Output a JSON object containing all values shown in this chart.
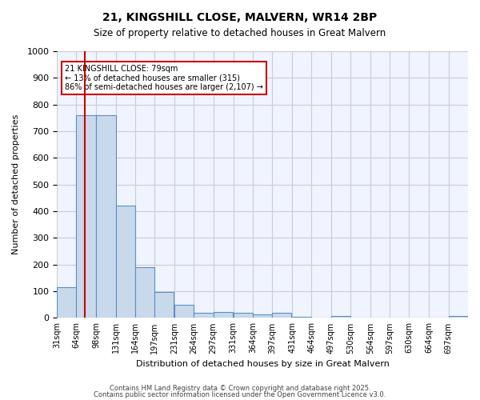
{
  "title1": "21, KINGSHILL CLOSE, MALVERN, WR14 2BP",
  "title2": "Size of property relative to detached houses in Great Malvern",
  "xlabel": "Distribution of detached houses by size in Great Malvern",
  "ylabel": "Number of detached properties",
  "bins": [
    31,
    64,
    98,
    131,
    164,
    197,
    231,
    264,
    297,
    331,
    364,
    397,
    431,
    464,
    497,
    530,
    564,
    597,
    630,
    664,
    697
  ],
  "counts": [
    115,
    760,
    760,
    420,
    190,
    97,
    48,
    20,
    22,
    20,
    13,
    18,
    5,
    2,
    8,
    0,
    0,
    0,
    0,
    0,
    8
  ],
  "bar_color": "#c9d9ec",
  "bar_edge_color": "#5a8fc3",
  "property_sqm": 79,
  "red_line_color": "#cc0000",
  "annotation_text": "21 KINGSHILL CLOSE: 79sqm\n← 13% of detached houses are smaller (315)\n86% of semi-detached houses are larger (2,107) →",
  "annotation_box_color": "#ffffff",
  "annotation_box_edge_color": "#cc0000",
  "ylim": [
    0,
    1000
  ],
  "yticks": [
    0,
    100,
    200,
    300,
    400,
    500,
    600,
    700,
    800,
    900,
    1000
  ],
  "grid_color": "#cccccc",
  "background_color": "#f0f4ff",
  "footer1": "Contains HM Land Registry data © Crown copyright and database right 2025.",
  "footer2": "Contains public sector information licensed under the Open Government Licence v3.0."
}
